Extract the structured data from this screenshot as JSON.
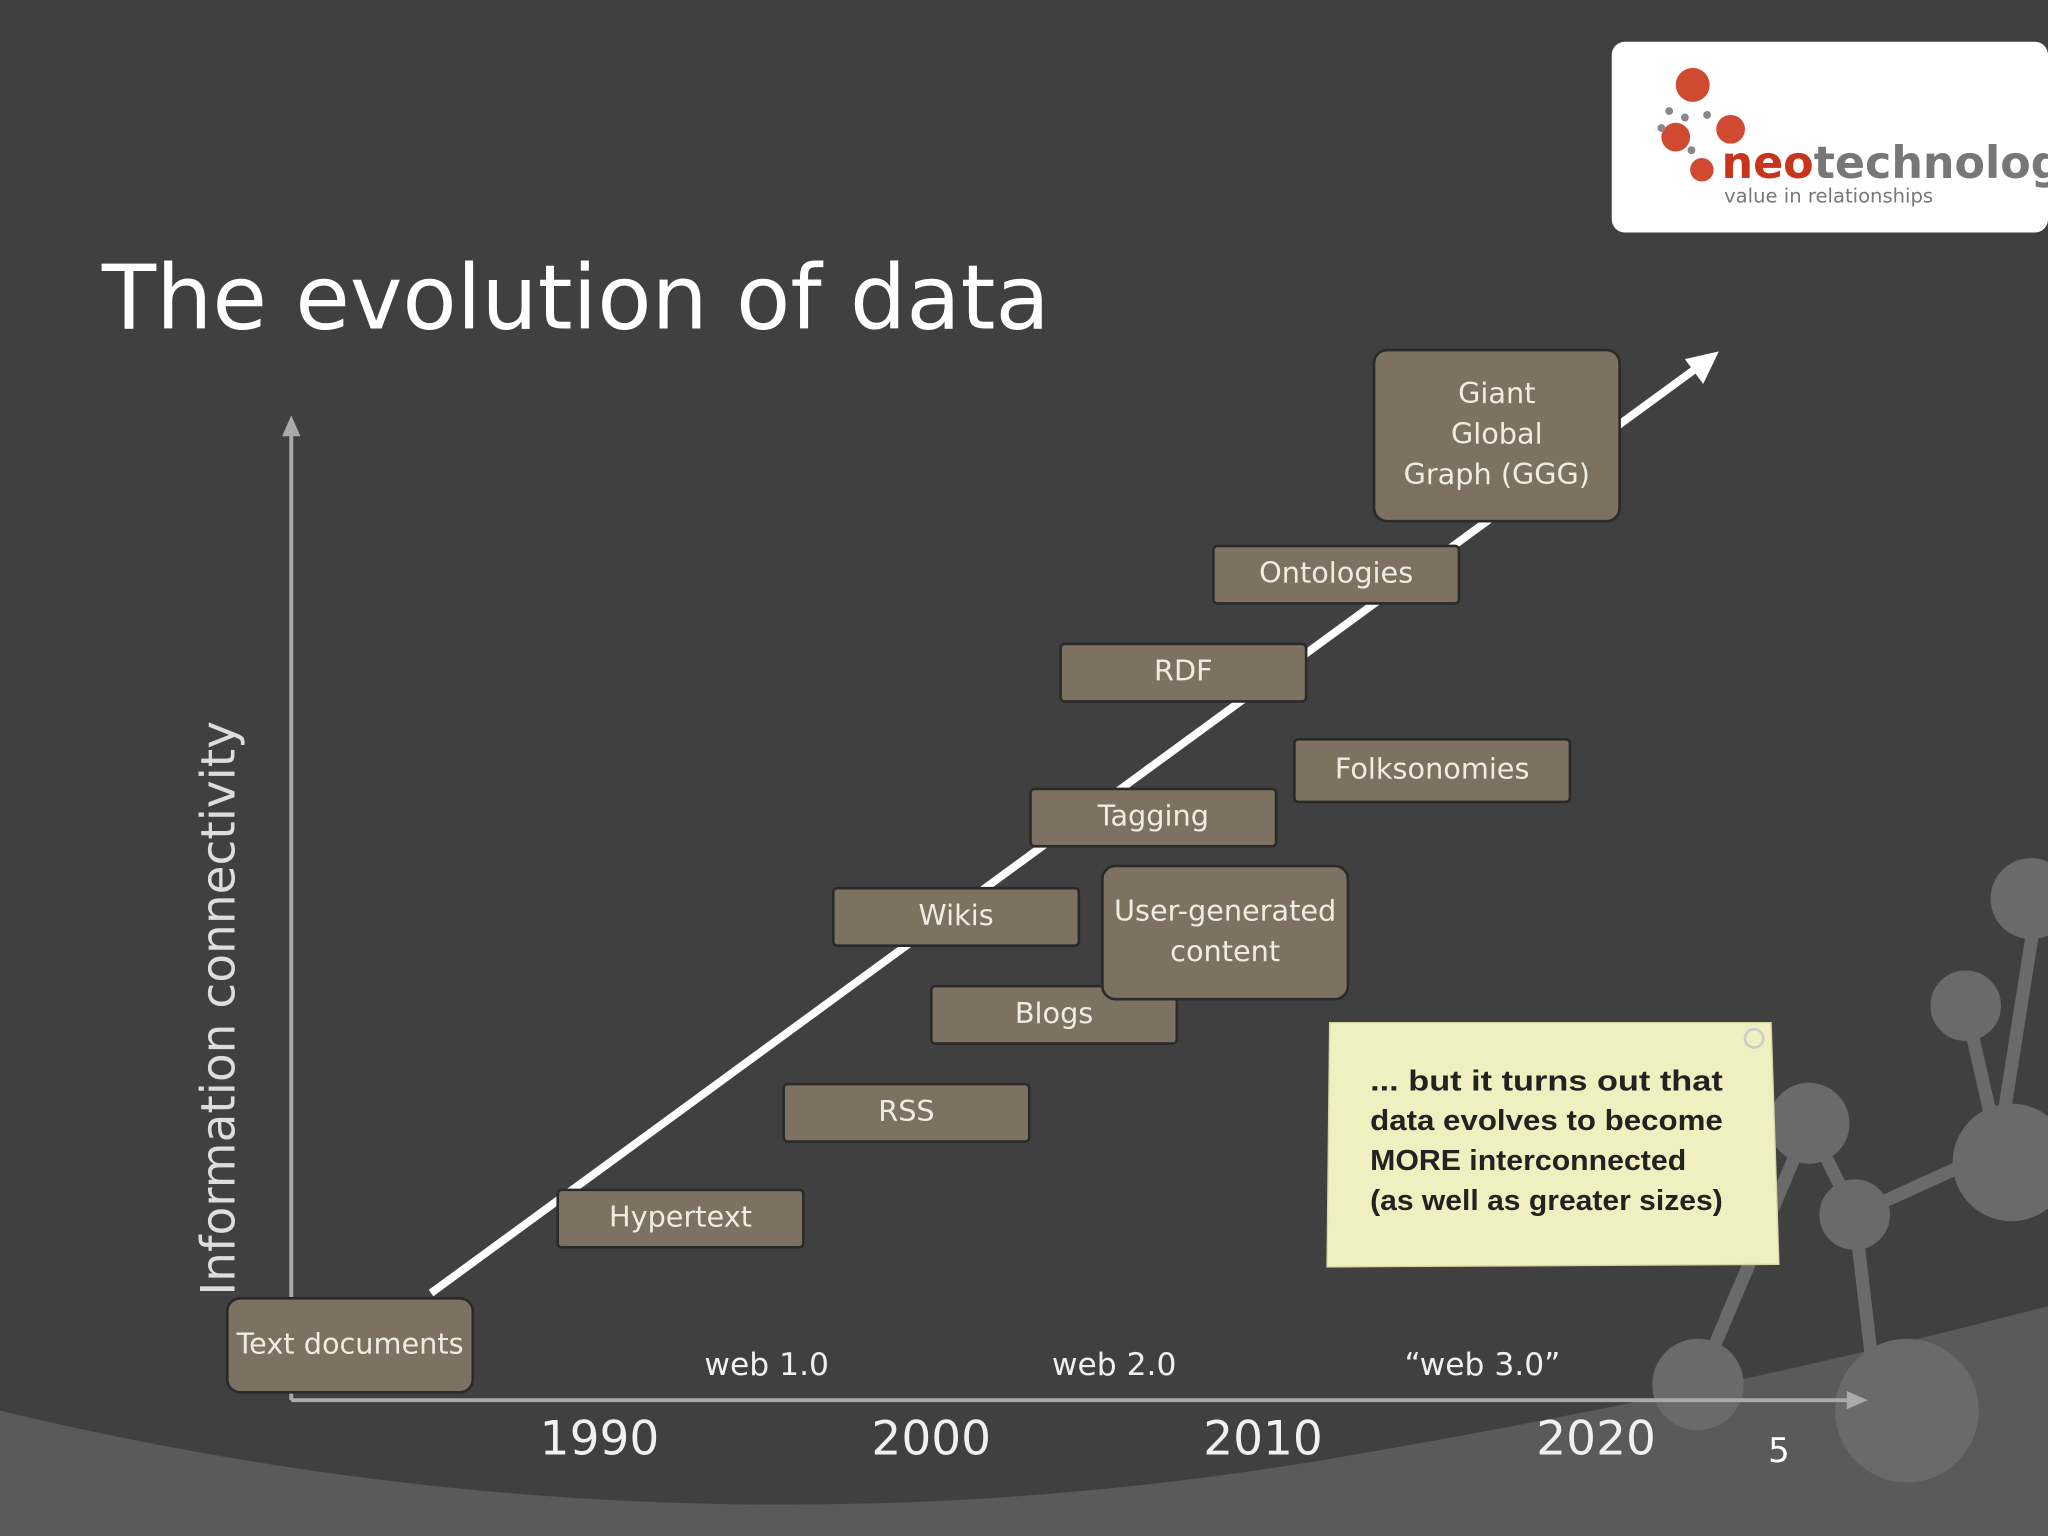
{
  "logo": {
    "brand": [
      "neo",
      "technology"
    ],
    "tagline": "value in relationships"
  },
  "title": "The evolution of data",
  "y_axis_label": "Information connectivity",
  "items": [
    {
      "lines": [
        "Text documents"
      ]
    },
    {
      "lines": [
        "Hypertext"
      ]
    },
    {
      "lines": [
        "RSS"
      ]
    },
    {
      "lines": [
        "Blogs"
      ]
    },
    {
      "lines": [
        "Wikis"
      ]
    },
    {
      "lines": [
        "User-generated",
        "content"
      ]
    },
    {
      "lines": [
        "Tagging"
      ]
    },
    {
      "lines": [
        "Folksonomies"
      ]
    },
    {
      "lines": [
        "RDF"
      ]
    },
    {
      "lines": [
        "Ontologies"
      ]
    },
    {
      "lines": [
        "Giant",
        "Global",
        "Graph (GGG)"
      ]
    }
  ],
  "eras": [
    "web 1.0",
    "web 2.0",
    "“web 3.0”"
  ],
  "years": [
    "1990",
    "2000",
    "2010",
    "2020"
  ],
  "note": {
    "lines": [
      "... but it turns out that",
      "data evolves to become",
      "MORE interconnected",
      "(as well as greater sizes)"
    ]
  },
  "page_number": "5"
}
